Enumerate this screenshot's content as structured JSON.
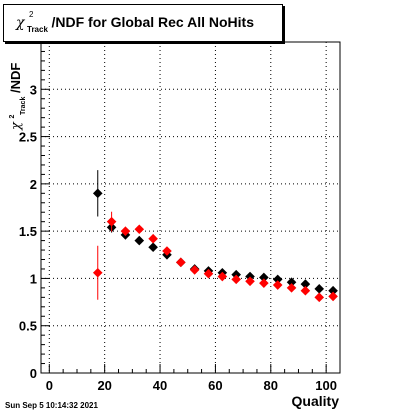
{
  "title": {
    "symbol": "χ",
    "superscript": "2",
    "subscript": "Track",
    "text": "/NDF for Global Rec All NoHits"
  },
  "footer": "Sun Sep  5 10:14:32 2021",
  "chart_data": {
    "type": "scatter",
    "xlabel": "Quality",
    "ylabel": "χ²_Track/NDF",
    "xlim": [
      -3,
      105
    ],
    "ylim": [
      0,
      3.5
    ],
    "x_ticks": [
      "0",
      "20",
      "40",
      "60",
      "80",
      "100"
    ],
    "y_ticks": [
      "0",
      "0.5",
      "1",
      "1.5",
      "2",
      "2.5",
      "3"
    ],
    "grid": true,
    "series": [
      {
        "color": "#000000",
        "points": [
          {
            "x": 17.5,
            "y": 1.9,
            "err": 0.24
          },
          {
            "x": 22.5,
            "y": 1.54,
            "err": 0.05
          },
          {
            "x": 27.5,
            "y": 1.46,
            "err": 0.03
          },
          {
            "x": 32.5,
            "y": 1.4,
            "err": 0.02
          },
          {
            "x": 37.5,
            "y": 1.33,
            "err": 0.02
          },
          {
            "x": 42.5,
            "y": 1.25,
            "err": 0.02
          },
          {
            "x": 47.5,
            "y": 1.17,
            "err": 0.02
          },
          {
            "x": 52.5,
            "y": 1.1,
            "err": 0.01
          },
          {
            "x": 57.5,
            "y": 1.08,
            "err": 0.01
          },
          {
            "x": 62.5,
            "y": 1.06,
            "err": 0.01
          },
          {
            "x": 67.5,
            "y": 1.04,
            "err": 0.01
          },
          {
            "x": 72.5,
            "y": 1.02,
            "err": 0.01
          },
          {
            "x": 77.5,
            "y": 1.01,
            "err": 0.01
          },
          {
            "x": 82.5,
            "y": 0.99,
            "err": 0.01
          },
          {
            "x": 87.5,
            "y": 0.96,
            "err": 0.01
          },
          {
            "x": 92.5,
            "y": 0.94,
            "err": 0.01
          },
          {
            "x": 97.5,
            "y": 0.89,
            "err": 0.01
          },
          {
            "x": 102.5,
            "y": 0.87,
            "err": 0.01
          }
        ]
      },
      {
        "color": "#ff0000",
        "points": [
          {
            "x": 17.5,
            "y": 1.06,
            "err": 0.28
          },
          {
            "x": 22.5,
            "y": 1.6,
            "err": 0.1
          },
          {
            "x": 27.5,
            "y": 1.5,
            "err": 0.04
          },
          {
            "x": 32.5,
            "y": 1.52,
            "err": 0.03
          },
          {
            "x": 37.5,
            "y": 1.42,
            "err": 0.03
          },
          {
            "x": 42.5,
            "y": 1.29,
            "err": 0.02
          },
          {
            "x": 47.5,
            "y": 1.17,
            "err": 0.02
          },
          {
            "x": 52.5,
            "y": 1.09,
            "err": 0.02
          },
          {
            "x": 57.5,
            "y": 1.05,
            "err": 0.01
          },
          {
            "x": 62.5,
            "y": 1.02,
            "err": 0.01
          },
          {
            "x": 67.5,
            "y": 0.99,
            "err": 0.01
          },
          {
            "x": 72.5,
            "y": 0.97,
            "err": 0.01
          },
          {
            "x": 77.5,
            "y": 0.95,
            "err": 0.01
          },
          {
            "x": 82.5,
            "y": 0.93,
            "err": 0.01
          },
          {
            "x": 87.5,
            "y": 0.9,
            "err": 0.01
          },
          {
            "x": 92.5,
            "y": 0.87,
            "err": 0.01
          },
          {
            "x": 97.5,
            "y": 0.8,
            "err": 0.01
          },
          {
            "x": 102.5,
            "y": 0.81,
            "err": 0.01
          }
        ]
      }
    ]
  }
}
